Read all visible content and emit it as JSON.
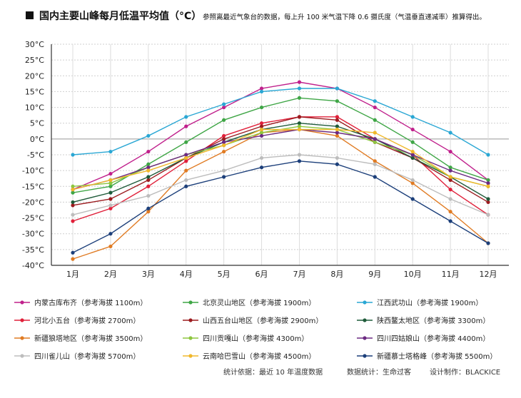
{
  "chart_data": {
    "type": "line",
    "title": "国内主要山峰每月低温平均值（°C）",
    "subtitle": "参照离最近气象台的数据，每上升 100 米气温下降 0.6 摄氏度（气温垂直递减率）推算得出。",
    "xlabel": "",
    "ylabel": "",
    "categories": [
      "1月",
      "2月",
      "3月",
      "4月",
      "5月",
      "6月",
      "7月",
      "8月",
      "9月",
      "10月",
      "11月",
      "12月"
    ],
    "ylim": [
      -40,
      30
    ],
    "yticks": [
      30,
      25,
      20,
      15,
      10,
      5,
      0,
      -5,
      -10,
      -15,
      -20,
      -25,
      -30,
      -35,
      -40
    ],
    "ytick_labels": [
      "30°C",
      "25°C",
      "20°C",
      "15°C",
      "10°C",
      "5°C",
      "0°C",
      "-5°C",
      "-10°C",
      "-15°C",
      "-20°C",
      "-25°C",
      "-30°C",
      "-35°C",
      "-40°C"
    ],
    "grid": true,
    "series": [
      {
        "name": "内蒙古库布齐（参考海拔 1100m）",
        "color": "#c0208c",
        "values": [
          -16,
          -11,
          -4,
          4,
          10,
          16,
          18,
          16,
          10,
          3,
          -4,
          -13
        ]
      },
      {
        "name": "北京灵山地区（参考海拔 1900m）",
        "color": "#3fa646",
        "values": [
          -17,
          -15,
          -8,
          -1,
          6,
          10,
          13,
          12,
          6,
          -1,
          -9,
          -13
        ]
      },
      {
        "name": "江西武功山（参考海拔 1900m）",
        "color": "#2aa7d4",
        "values": [
          -5,
          -4,
          1,
          7,
          11,
          15,
          16,
          16,
          12,
          7,
          2,
          -5
        ]
      },
      {
        "name": "河北小五台（参考海拔 2700m）",
        "color": "#e0203a",
        "values": [
          -26,
          -22,
          -15,
          -7,
          1,
          5,
          7,
          7,
          0,
          -5,
          -16,
          -24
        ]
      },
      {
        "name": "山西五台山地区（参考海拔 2900m）",
        "color": "#9b1b1f",
        "values": [
          -21,
          -19,
          -13,
          -6,
          0,
          4,
          7,
          6,
          -1,
          -6,
          -13,
          -20
        ]
      },
      {
        "name": "陕西鳌太地区（参考海拔 3300m）",
        "color": "#1f5b3a",
        "values": [
          -20,
          -17,
          -12,
          -6,
          -1,
          3,
          5,
          4,
          0,
          -6,
          -12,
          -19
        ]
      },
      {
        "name": "新疆狼塔地区（参考海拔 3500m）",
        "color": "#e07b23",
        "values": [
          -38,
          -34,
          -23,
          -10,
          -4,
          2,
          3,
          1,
          -7,
          -14,
          -23,
          -33
        ]
      },
      {
        "name": "四川贡嘎山（参考海拔 4300m）",
        "color": "#8dc63f",
        "values": [
          -15,
          -14,
          -9,
          -5,
          -2,
          2,
          4,
          3,
          -1,
          -5,
          -12,
          -15
        ]
      },
      {
        "name": "四川四姑娘山（参考海拔 4400m）",
        "color": "#6c2a82",
        "values": [
          -16,
          -13,
          -9,
          -5,
          -1,
          1,
          3,
          2,
          0,
          -5,
          -10,
          -14
        ]
      },
      {
        "name": "四川雀儿山（参考海拔 5700m）",
        "color": "#bdbdbd",
        "values": [
          -24,
          -21,
          -18,
          -13,
          -10,
          -6,
          -5,
          -6,
          -8,
          -13,
          -19,
          -24
        ]
      },
      {
        "name": "云南哈巴雪山（参考海拔 4500m）",
        "color": "#f0b82b",
        "values": [
          -16,
          -13,
          -10,
          -6,
          -2,
          3,
          3,
          3,
          2,
          -4,
          -12,
          -15
        ]
      },
      {
        "name": "新疆慕士塔格峰（参考海拔 5500m）",
        "color": "#1c3f7a",
        "values": [
          -36,
          -30,
          -22,
          -15,
          -12,
          -9,
          -7,
          -8,
          -12,
          -19,
          -26,
          -33
        ]
      }
    ]
  },
  "footer": {
    "source": "统计依据：最近 10 年温度数据",
    "stats": "数据统计：生命过客",
    "design": "设计制作：BLACKICE"
  }
}
